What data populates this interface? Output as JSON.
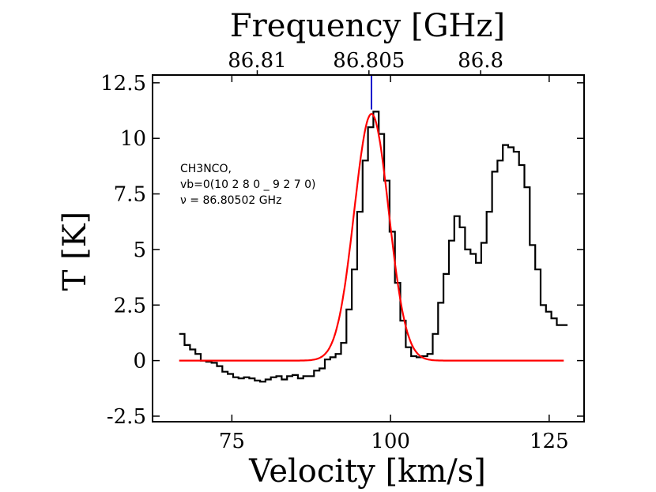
{
  "chart_data": {
    "type": "line",
    "xlabel": "Velocity [km/s]",
    "ylabel": "T [K]",
    "top_axis_label": "Frequency [GHz]",
    "xlim": [
      62.5,
      130.5
    ],
    "ylim": [
      -2.75,
      12.85
    ],
    "x_ticks": [
      75,
      100,
      125
    ],
    "x_tick_labels": [
      "75",
      "100",
      "125"
    ],
    "y_ticks": [
      -2.5,
      0,
      2.5,
      5,
      7.5,
      10,
      12.5
    ],
    "y_tick_labels": [
      "-2.5",
      "0",
      "2.5",
      "5",
      "7.5",
      "10",
      "12.5"
    ],
    "top_ticks": [
      {
        "velocity": 79.0,
        "label": "86.81"
      },
      {
        "velocity": 96.6,
        "label": "86.805"
      },
      {
        "velocity": 114.2,
        "label": "86.8"
      }
    ],
    "annotation": {
      "lines": [
        "CH3NCO,",
        "vb=0(10 2 8 0 _ 9 2 7 0)",
        "ν = 86.80502 GHz"
      ]
    },
    "line_marker": {
      "velocity": 97.0,
      "y_from": 11.3,
      "y_to": 12.85,
      "color": "#0000cc"
    },
    "series": [
      {
        "name": "observed spectrum",
        "style": "steps",
        "color": "#000000",
        "x": [
          66.7,
          67.55,
          68.4,
          69.25,
          70.1,
          70.95,
          71.8,
          72.65,
          73.5,
          74.35,
          75.2,
          76.05,
          76.9,
          77.75,
          78.6,
          79.45,
          80.3,
          81.15,
          82.0,
          82.85,
          83.7,
          84.55,
          85.4,
          86.25,
          87.1,
          87.95,
          88.8,
          89.65,
          90.5,
          91.35,
          92.2,
          93.05,
          93.9,
          94.75,
          95.6,
          96.45,
          97.3,
          98.15,
          99.0,
          99.85,
          100.7,
          101.55,
          102.4,
          103.25,
          104.1,
          104.95,
          105.8,
          106.65,
          107.5,
          108.35,
          109.2,
          110.05,
          110.9,
          111.75,
          112.6,
          113.45,
          114.3,
          115.15,
          116.0,
          116.85,
          117.7,
          118.55,
          119.4,
          120.25,
          121.1,
          121.95,
          122.8,
          123.65,
          124.5,
          125.35,
          126.2,
          127.05
        ],
        "y": [
          1.2,
          0.7,
          0.5,
          0.3,
          0.0,
          -0.05,
          -0.1,
          -0.25,
          -0.5,
          -0.6,
          -0.75,
          -0.8,
          -0.75,
          -0.8,
          -0.9,
          -0.95,
          -0.85,
          -0.75,
          -0.7,
          -0.85,
          -0.7,
          -0.65,
          -0.8,
          -0.7,
          -0.7,
          -0.45,
          -0.35,
          0.05,
          0.15,
          0.3,
          0.8,
          2.3,
          4.1,
          6.7,
          9.0,
          10.5,
          11.2,
          10.2,
          8.1,
          5.8,
          3.5,
          1.8,
          0.6,
          0.2,
          0.15,
          0.2,
          0.3,
          1.2,
          2.6,
          3.9,
          5.4,
          6.5,
          6.0,
          5.0,
          4.8,
          4.4,
          5.3,
          6.7,
          8.5,
          9.0,
          9.7,
          9.6,
          9.4,
          8.8,
          7.8,
          5.2,
          4.1,
          2.5,
          2.2,
          1.9,
          1.6,
          1.6
        ]
      },
      {
        "name": "gaussian fit",
        "style": "line",
        "color": "#ff0000",
        "model": {
          "x_start": 66.7,
          "x_end": 127.3,
          "amplitude": 11.1,
          "center": 97.0,
          "fwhm": 6.4
        }
      }
    ]
  }
}
